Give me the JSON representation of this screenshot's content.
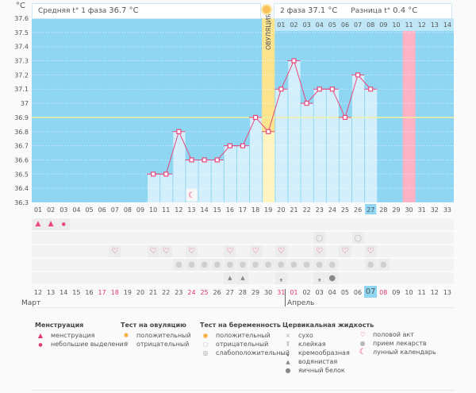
{
  "header": {
    "unit": "°C",
    "phase1_label": "Средняя t° 1 фаза",
    "phase1_value": "36.7 °C",
    "phase2_label": "2 фаза",
    "phase2_value": "37.1 °C",
    "diff_label": "Разница t°",
    "diff_value": "0.4 °C",
    "ovulation_label": "ОВУЛЯЦИЯ",
    "luteal_days": [
      "01",
      "02",
      "03",
      "04",
      "05",
      "06",
      "07",
      "08",
      "09",
      "10",
      "11",
      "12",
      "13",
      "14"
    ]
  },
  "chart_data": {
    "type": "line",
    "title": "",
    "ylabel": "°C",
    "ylim": [
      36.3,
      37.6
    ],
    "yticks": [
      "37.6",
      "37.5",
      "37.4",
      "37.3",
      "37.2",
      "37.1",
      "37",
      "36.9",
      "36.8",
      "36.7",
      "36.6",
      "36.5",
      "36.4",
      "36.3"
    ],
    "coverline": 36.9,
    "x": [
      "01",
      "02",
      "03",
      "04",
      "05",
      "06",
      "07",
      "08",
      "09",
      "10",
      "11",
      "12",
      "13",
      "14",
      "15",
      "16",
      "17",
      "18",
      "19",
      "20",
      "21",
      "22",
      "23",
      "24",
      "25",
      "26",
      "27",
      "28",
      "29",
      "30",
      "31",
      "32",
      "33"
    ],
    "series": [
      {
        "name": "temperature",
        "start_day": 10,
        "values": [
          36.5,
          36.5,
          36.8,
          36.6,
          36.6,
          36.6,
          36.7,
          36.7,
          36.9,
          36.8,
          37.1,
          37.3,
          37.0,
          37.1,
          37.1,
          36.9,
          37.2,
          37.1
        ]
      }
    ],
    "ovulation_day": 19,
    "expected_period_day": 30,
    "today_day": 27,
    "moon_day": 13
  },
  "calendar": {
    "dates": [
      "12",
      "13",
      "14",
      "15",
      "16",
      "17",
      "18",
      "19",
      "20",
      "21",
      "22",
      "23",
      "24",
      "25",
      "26",
      "27",
      "28",
      "29",
      "30",
      "31",
      "01",
      "02",
      "03",
      "04",
      "05",
      "06",
      "07",
      "08",
      "09",
      "10",
      "11",
      "12",
      "13"
    ],
    "red_dates_idx": [
      5,
      6,
      12,
      13,
      19,
      20,
      27
    ],
    "today_idx": 26,
    "month1": "Март",
    "month2": "Апрель",
    "rows": {
      "menstruation": {
        "1": "heavy",
        "2": "heavy",
        "3": "light"
      },
      "pregnancy_test": {
        "23": "negative",
        "26": "negative"
      },
      "intercourse": [
        7,
        10,
        11,
        13,
        16,
        18,
        20,
        23,
        25,
        27
      ],
      "medication": [
        12,
        13,
        14,
        15,
        16,
        17,
        18,
        19,
        20,
        21,
        22,
        23,
        24,
        27,
        28
      ],
      "cervical": {
        "16": "watery",
        "17": "watery",
        "20": "creamy",
        "23": "creamy",
        "24": "egg-white"
      }
    }
  },
  "legend": {
    "menstruation": {
      "title": "Менструация",
      "items": [
        "менструация",
        "небольшие выделения"
      ]
    },
    "ovulation_test": {
      "title": "Тест на овуляцию",
      "items": [
        "положительный",
        "отрицательный"
      ]
    },
    "pregnancy_test": {
      "title": "Тест на беременность",
      "items": [
        "положительный",
        "отрицательный",
        "слабоположительный"
      ]
    },
    "cervical": {
      "title": "Цервикальная жидкость",
      "items": [
        "сухо",
        "клейкая",
        "кремообразная",
        "водянистая",
        "яичный белок"
      ]
    },
    "other": {
      "items": [
        "половой акт",
        "прием лекарств",
        "лунный календарь"
      ]
    }
  },
  "colors": {
    "sky": "#8fd6f2",
    "bar": "#d4effc",
    "line": "#e8487a",
    "ovulation": "#fbe48d",
    "period": "#fcb3c6",
    "coverline": "#f0f0a0",
    "today": "#8fd6f2"
  }
}
